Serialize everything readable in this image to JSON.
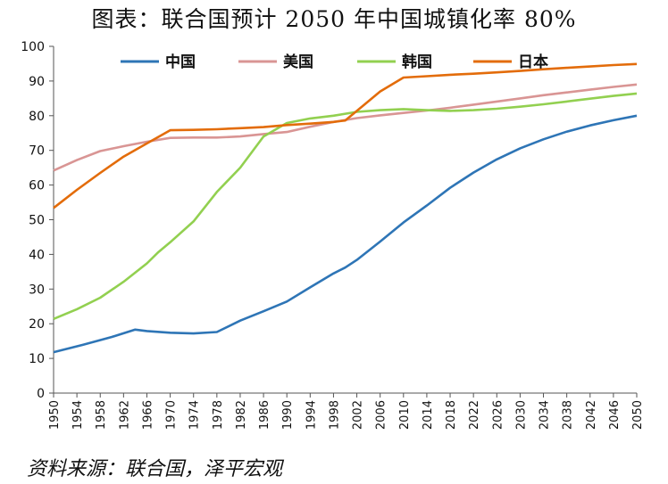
{
  "title": "图表：联合国预计 2050 年中国城镇化率 80%",
  "source": "资料来源：联合国，泽平宏观",
  "chart_data": {
    "type": "line",
    "title": "图表：联合国预计 2050 年中国城镇化率 80%",
    "xlabel": "",
    "ylabel": "",
    "ylim": [
      0,
      100
    ],
    "yticks": [
      0,
      10,
      20,
      30,
      40,
      50,
      60,
      70,
      80,
      90,
      100
    ],
    "xlim": [
      1950,
      2050
    ],
    "xticks": [
      1950,
      1954,
      1958,
      1962,
      1966,
      1970,
      1974,
      1978,
      1982,
      1986,
      1990,
      1994,
      1998,
      2002,
      2006,
      2010,
      2014,
      2018,
      2022,
      2026,
      2030,
      2034,
      2038,
      2042,
      2046,
      2050
    ],
    "legend_position": "top",
    "grid": false,
    "series": [
      {
        "name": "中国",
        "color": "#2E75B6",
        "x": [
          1950,
          1955,
          1960,
          1964,
          1966,
          1970,
          1974,
          1978,
          1982,
          1986,
          1990,
          1994,
          1998,
          2000,
          2002,
          2006,
          2010,
          2014,
          2018,
          2022,
          2026,
          2030,
          2034,
          2038,
          2042,
          2046,
          2050
        ],
        "y": [
          11.8,
          13.9,
          16.2,
          18.3,
          17.9,
          17.4,
          17.2,
          17.6,
          20.9,
          23.6,
          26.4,
          30.5,
          34.5,
          36.2,
          38.4,
          43.7,
          49.2,
          54.1,
          59.2,
          63.6,
          67.4,
          70.6,
          73.2,
          75.4,
          77.2,
          78.7,
          80.0
        ]
      },
      {
        "name": "美国",
        "color": "#D99594",
        "x": [
          1950,
          1954,
          1958,
          1962,
          1966,
          1970,
          1974,
          1978,
          1982,
          1986,
          1990,
          1994,
          1998,
          2002,
          2006,
          2010,
          2014,
          2018,
          2022,
          2026,
          2030,
          2034,
          2038,
          2042,
          2046,
          2050
        ],
        "y": [
          64.2,
          67.2,
          69.8,
          71.2,
          72.5,
          73.6,
          73.7,
          73.7,
          74.0,
          74.7,
          75.3,
          76.8,
          78.2,
          79.3,
          80.1,
          80.8,
          81.5,
          82.3,
          83.2,
          84.1,
          85.0,
          85.9,
          86.7,
          87.5,
          88.3,
          89.0
        ]
      },
      {
        "name": "韩国",
        "color": "#92D050",
        "x": [
          1950,
          1954,
          1958,
          1962,
          1966,
          1968,
          1970,
          1974,
          1978,
          1982,
          1986,
          1990,
          1994,
          1998,
          2002,
          2006,
          2010,
          2014,
          2018,
          2022,
          2026,
          2030,
          2034,
          2038,
          2042,
          2046,
          2050
        ],
        "y": [
          21.4,
          24.2,
          27.5,
          32.1,
          37.4,
          40.7,
          43.5,
          49.5,
          58.0,
          65.0,
          74.0,
          77.9,
          79.2,
          80.0,
          81.1,
          81.6,
          81.9,
          81.6,
          81.4,
          81.6,
          82.0,
          82.6,
          83.3,
          84.1,
          84.9,
          85.7,
          86.4
        ]
      },
      {
        "name": "日本",
        "color": "#E36C0A",
        "x": [
          1950,
          1954,
          1958,
          1962,
          1966,
          1970,
          1974,
          1978,
          1982,
          1986,
          1990,
          1994,
          1998,
          2000,
          2002,
          2006,
          2010,
          2014,
          2018,
          2022,
          2026,
          2030,
          2034,
          2038,
          2042,
          2046,
          2050
        ],
        "y": [
          53.4,
          58.6,
          63.5,
          68.2,
          72.0,
          75.8,
          75.9,
          76.1,
          76.4,
          76.7,
          77.3,
          77.7,
          78.2,
          78.6,
          81.4,
          87.0,
          91.0,
          91.4,
          91.8,
          92.1,
          92.5,
          92.9,
          93.4,
          93.8,
          94.2,
          94.6,
          94.9
        ]
      }
    ]
  }
}
